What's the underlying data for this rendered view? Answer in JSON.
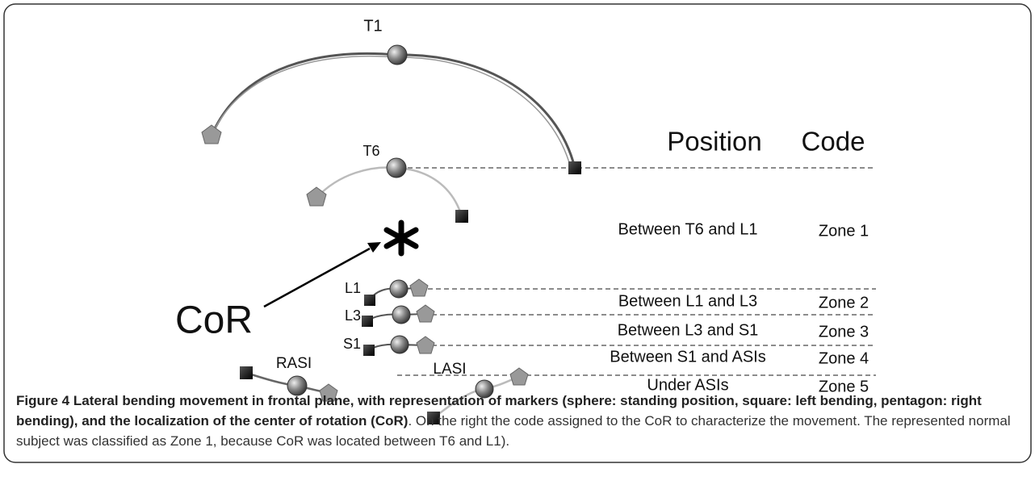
{
  "figure": {
    "markers": {
      "t1": "T1",
      "t6": "T6",
      "l1": "L1",
      "l3": "L3",
      "s1": "S1",
      "rasi": "RASI",
      "lasi": "LASI"
    },
    "cor_label": "CoR",
    "table": {
      "header": [
        "Position",
        "Code"
      ],
      "rows": [
        [
          "Between T6 and L1",
          "Zone 1"
        ],
        [
          "Between L1 and L3",
          "Zone 2"
        ],
        [
          "Between L3 and S1",
          "Zone 3"
        ],
        [
          "Between S1 and ASIs",
          "Zone 4"
        ],
        [
          "Under ASIs",
          "Zone 5"
        ]
      ]
    }
  },
  "caption": {
    "label": "Figure 4",
    "title": "Lateral bending movement in frontal plane, with representation of markers (sphere: standing position, square: left bending, pentagon: right bending), and the localization of the center of rotation (CoR)",
    "text": ". On the right the code assigned to the CoR to characterize the movement. The represented normal subject was classified as Zone 1, because CoR was located between T6 and L1)."
  }
}
